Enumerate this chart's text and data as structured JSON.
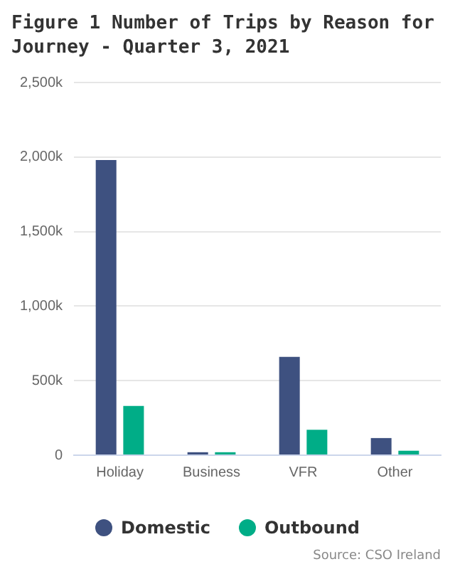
{
  "chart_data": {
    "type": "bar",
    "title": "Figure 1 Number of Trips by Reason for Journey - Quarter 3, 2021",
    "categories": [
      "Holiday",
      "Business",
      "VFR",
      "Other"
    ],
    "series": [
      {
        "name": "Domestic",
        "color": "#3e5180",
        "values": [
          1980000,
          20000,
          660000,
          115000
        ]
      },
      {
        "name": "Outbound",
        "color": "#00ad87",
        "values": [
          330000,
          20000,
          170000,
          30000
        ]
      }
    ],
    "ylim": [
      0,
      2500000
    ],
    "yticks": [
      {
        "value": 0,
        "label": "0"
      },
      {
        "value": 500000,
        "label": "500k"
      },
      {
        "value": 1000000,
        "label": "1,000k"
      },
      {
        "value": 1500000,
        "label": "1,500k"
      },
      {
        "value": 2000000,
        "label": "2,000k"
      },
      {
        "value": 2500000,
        "label": "2,500k"
      }
    ],
    "grid": "y",
    "legend": "bottom",
    "annotations": [
      "Source: CSO Ireland"
    ]
  }
}
